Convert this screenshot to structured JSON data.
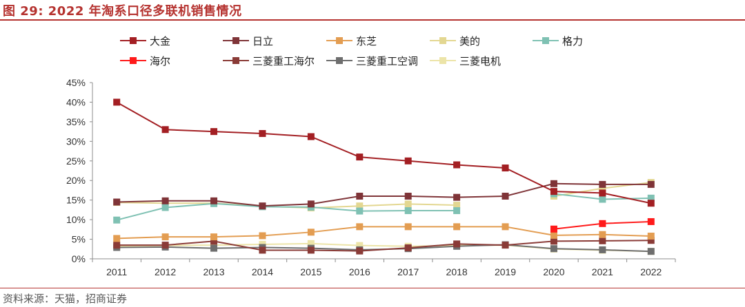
{
  "figure": {
    "title": "图 29:  2022 年淘系口径多联机销售情况",
    "source": "资料来源：天猫，招商证券"
  },
  "chart_data": {
    "type": "line",
    "title": "2022 年淘系口径多联机销售情况",
    "xlabel": "",
    "ylabel": "",
    "categories": [
      "2011",
      "2012",
      "2013",
      "2014",
      "2015",
      "2016",
      "2017",
      "2018",
      "2019",
      "2020",
      "2021",
      "2022"
    ],
    "ylim": [
      0,
      45
    ],
    "yticks": [
      "0%",
      "5%",
      "10%",
      "15%",
      "20%",
      "25%",
      "30%",
      "35%",
      "40%",
      "45%"
    ],
    "grid": false,
    "legend_position": "top",
    "series": [
      {
        "name": "大金",
        "color": "#a31f23",
        "values": [
          40,
          33,
          32.5,
          32,
          31.2,
          26,
          25,
          24,
          23.2,
          17.2,
          16.8,
          14.2
        ]
      },
      {
        "name": "日立",
        "color": "#7f3438",
        "values": [
          14.5,
          14.8,
          14.8,
          13.5,
          14,
          16,
          16,
          15.7,
          16,
          19.2,
          19,
          19
        ]
      },
      {
        "name": "东芝",
        "color": "#e39d52",
        "values": [
          5.2,
          5.6,
          5.6,
          5.9,
          6.8,
          8.2,
          8.2,
          8.2,
          8.2,
          6,
          6.2,
          5.8
        ]
      },
      {
        "name": "美的",
        "color": "#e3d791",
        "values": [
          14.4,
          14.2,
          14.2,
          13.4,
          13,
          13.5,
          14,
          13.7,
          null,
          16,
          18,
          19.5
        ]
      },
      {
        "name": "格力",
        "color": "#7fc1b3",
        "values": [
          9.9,
          13.1,
          14.1,
          13.3,
          13.2,
          12.2,
          12.3,
          12.3,
          null,
          16.6,
          15.2,
          15.5
        ]
      },
      {
        "name": "海尔",
        "color": "#ff1a1a",
        "values": [
          null,
          null,
          null,
          null,
          null,
          null,
          null,
          null,
          null,
          7.6,
          9,
          9.5
        ]
      },
      {
        "name": "三菱重工海尔",
        "color": "#8a3b37",
        "values": [
          3.5,
          3.5,
          4.5,
          2.2,
          2.2,
          2,
          2.8,
          3.8,
          3.5,
          4.5,
          4.6,
          4.7
        ]
      },
      {
        "name": "三菱重工空调",
        "color": "#6e6e6e",
        "values": [
          2.9,
          3,
          2.7,
          2.9,
          2.7,
          2.3,
          2.6,
          3.2,
          3.6,
          2.6,
          2.3,
          1.9
        ]
      },
      {
        "name": "三菱电机",
        "color": "#ece4a8",
        "values": [
          3.2,
          3.4,
          3.5,
          3.7,
          3.9,
          3.4,
          3.2,
          3.4,
          3.5,
          2.5,
          2.2,
          1.9
        ]
      }
    ]
  }
}
